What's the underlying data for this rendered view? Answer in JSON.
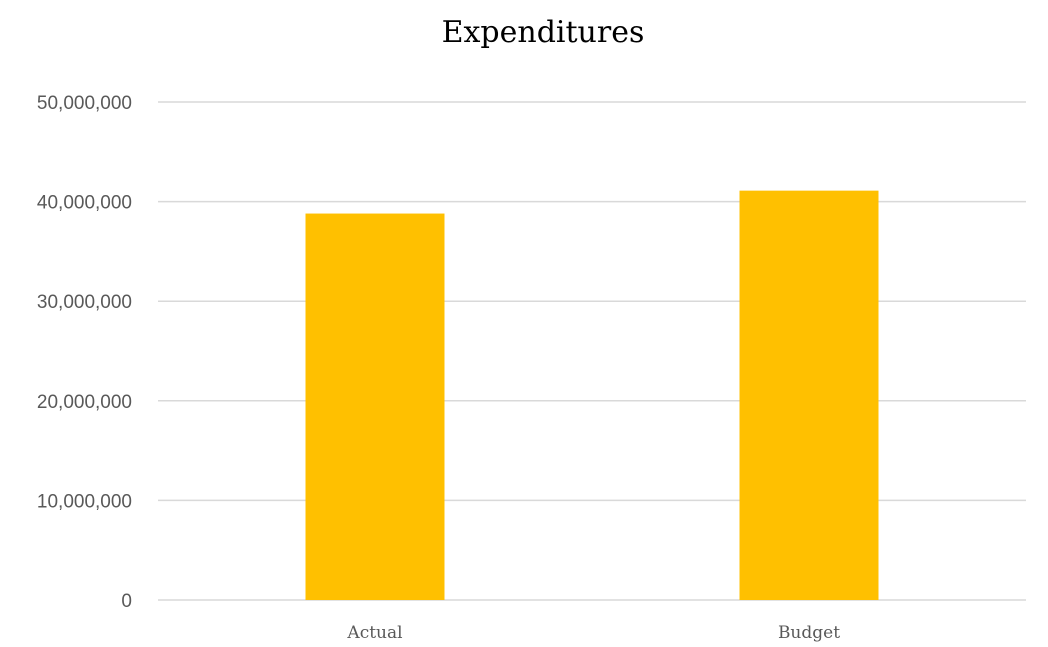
{
  "chart_data": {
    "type": "bar",
    "title": "Expenditures",
    "categories": [
      "Actual",
      "Budget"
    ],
    "series": [
      {
        "values": [
          38800000,
          41100000
        ]
      }
    ],
    "ylim": [
      0,
      50000000
    ],
    "yticks": [
      "0",
      "10,000,000",
      "20,000,000",
      "30,000,000",
      "40,000,000",
      "50,000,000"
    ],
    "ytick_values": [
      0,
      10000000,
      20000000,
      30000000,
      40000000,
      50000000
    ],
    "grid": true,
    "legend": "none",
    "bar_color": "#FFC000"
  }
}
